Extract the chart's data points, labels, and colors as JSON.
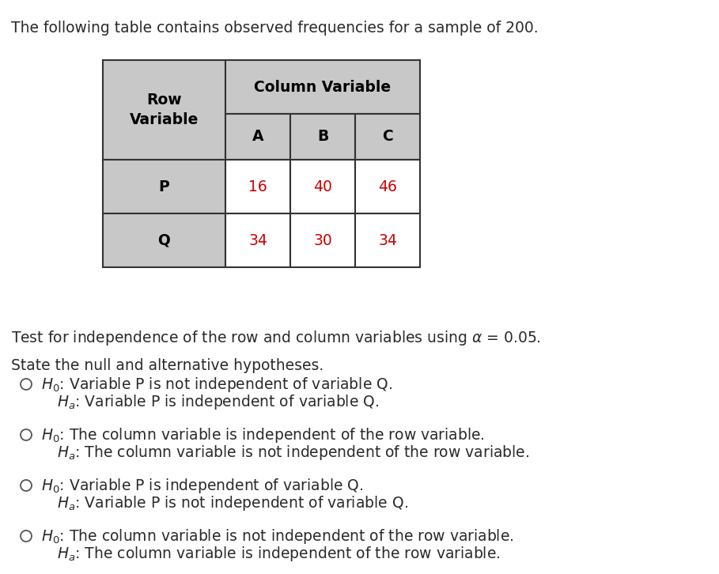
{
  "title_text": "The following table contains observed frequencies for a sample of 200.",
  "table": {
    "col_header_label": "Column Variable",
    "col_labels": [
      "A",
      "B",
      "C"
    ],
    "row_labels": [
      "P",
      "Q"
    ],
    "values": [
      [
        16,
        40,
        46
      ],
      [
        34,
        30,
        34
      ]
    ],
    "header_bg": "#c8c8c8",
    "data_bg": "#ffffff",
    "value_color": "#cc0000",
    "header_text_color": "#000000",
    "border_color": "#333333"
  },
  "paragraph1": "Test for independence of the row and column variables using $\\alpha$ = 0.05.",
  "paragraph2": "State the null and alternative hypotheses.",
  "option_h0": [
    "$H_0$: Variable P is not independent of variable Q.",
    "$H_0$: The column variable is independent of the row variable.",
    "$H_0$: Variable P is independent of variable Q.",
    "$H_0$: The column variable is not independent of the row variable."
  ],
  "option_ha": [
    "$H_a$: Variable P is independent of variable Q.",
    "$H_a$: The column variable is not independent of the row variable.",
    "$H_a$: Variable P is not independent of variable Q.",
    "$H_a$: The column variable is independent of the row variable."
  ],
  "font_size_main": 13.5,
  "font_size_table": 13.5,
  "bg_color": "#ffffff",
  "text_color": "#2a2a2a",
  "circle_color": "#555555"
}
